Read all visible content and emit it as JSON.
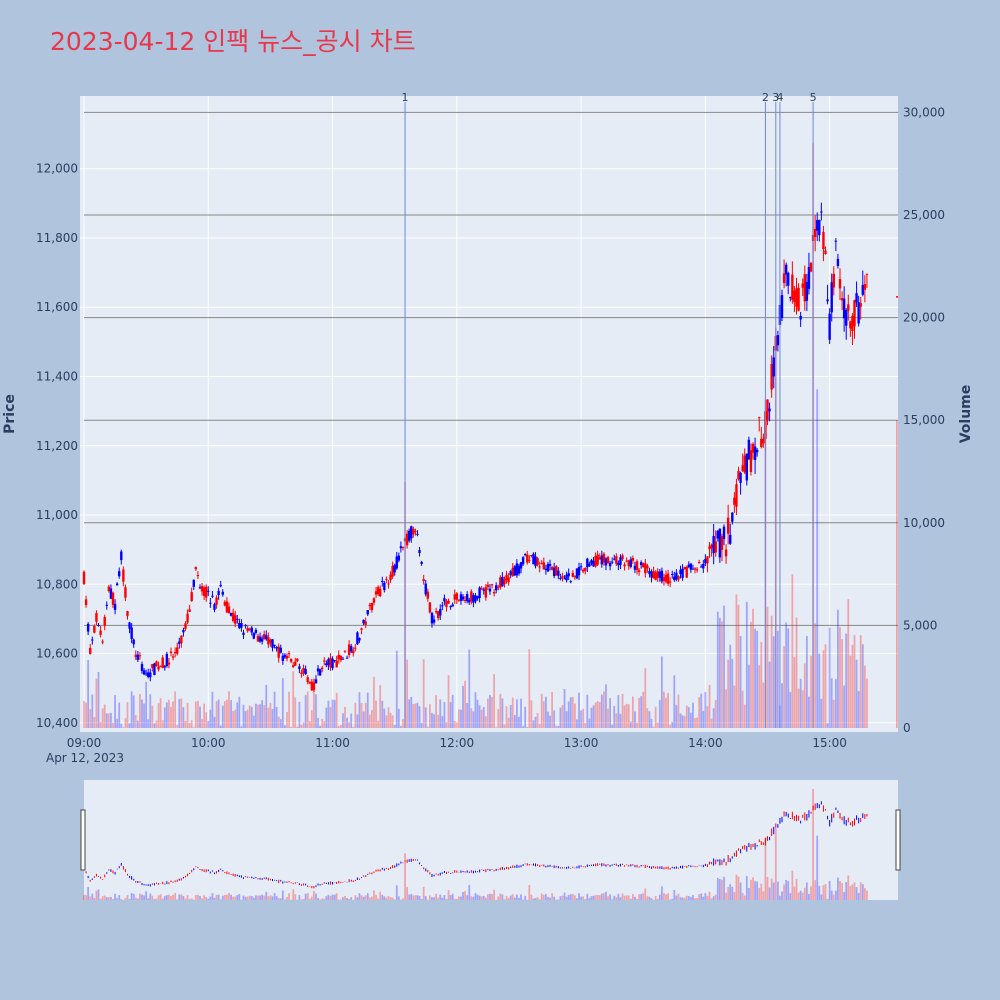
{
  "title": "2023-04-12 인팩 뉴스_공시 차트",
  "colors": {
    "background": "#b0c4de",
    "plot_bg": "#e5ecf6",
    "up": "#ff0000",
    "down": "#0000ff",
    "title": "#e8374a",
    "news_line": "#6f86e0",
    "h_line": "#888888"
  },
  "chart_data": {
    "type": "candlestick",
    "date_label": "Apr 12, 2023",
    "y_label": "Price",
    "y2_label": "Volume",
    "y_ticks": [
      "10,400",
      "10,600",
      "10,800",
      "11,000",
      "11,200",
      "11,400",
      "11,600",
      "11,800",
      "12,000"
    ],
    "y_tick_values": [
      10400,
      10600,
      10800,
      11000,
      11200,
      11400,
      11600,
      11800,
      12000
    ],
    "y_range": [
      10385,
      12210
    ],
    "y2_ticks": [
      "0",
      "5,000",
      "10,000",
      "15,000",
      "20,000",
      "25,000",
      "30,000"
    ],
    "y2_tick_values": [
      0,
      5000,
      10000,
      15000,
      20000,
      25000,
      30000
    ],
    "y2_range": [
      0,
      30800
    ],
    "x_ticks": [
      "09:00",
      "10:00",
      "11:00",
      "12:00",
      "13:00",
      "14:00",
      "15:00"
    ],
    "x_tick_minutes": [
      0,
      60,
      120,
      180,
      240,
      300,
      360
    ],
    "x_range_minutes": [
      0,
      393
    ],
    "news_markers": [
      {
        "label": "1",
        "minute": 155
      },
      {
        "label": "2",
        "minute": 329
      },
      {
        "label": "3",
        "minute": 334
      },
      {
        "label": "4",
        "minute": 336
      },
      {
        "label": "5",
        "minute": 352
      }
    ],
    "horizontal_lines_volume": [
      30000,
      25000,
      20000,
      15000,
      10000,
      5000
    ],
    "anchors": [
      [
        0,
        10820
      ],
      [
        3,
        10600
      ],
      [
        6,
        10700
      ],
      [
        9,
        10640
      ],
      [
        12,
        10790
      ],
      [
        15,
        10740
      ],
      [
        18,
        10880
      ],
      [
        21,
        10720
      ],
      [
        25,
        10600
      ],
      [
        30,
        10540
      ],
      [
        35,
        10560
      ],
      [
        40,
        10580
      ],
      [
        45,
        10600
      ],
      [
        50,
        10700
      ],
      [
        54,
        10840
      ],
      [
        57,
        10790
      ],
      [
        60,
        10770
      ],
      [
        63,
        10740
      ],
      [
        66,
        10790
      ],
      [
        70,
        10720
      ],
      [
        75,
        10680
      ],
      [
        80,
        10660
      ],
      [
        85,
        10650
      ],
      [
        90,
        10630
      ],
      [
        95,
        10600
      ],
      [
        100,
        10580
      ],
      [
        105,
        10560
      ],
      [
        110,
        10500
      ],
      [
        115,
        10570
      ],
      [
        120,
        10570
      ],
      [
        125,
        10590
      ],
      [
        130,
        10620
      ],
      [
        135,
        10680
      ],
      [
        140,
        10760
      ],
      [
        145,
        10800
      ],
      [
        150,
        10850
      ],
      [
        155,
        10920
      ],
      [
        160,
        10970
      ],
      [
        163,
        10850
      ],
      [
        168,
        10700
      ],
      [
        175,
        10750
      ],
      [
        185,
        10760
      ],
      [
        195,
        10780
      ],
      [
        205,
        10820
      ],
      [
        215,
        10880
      ],
      [
        225,
        10840
      ],
      [
        235,
        10820
      ],
      [
        245,
        10870
      ],
      [
        255,
        10870
      ],
      [
        265,
        10860
      ],
      [
        272,
        10840
      ],
      [
        282,
        10820
      ],
      [
        292,
        10840
      ],
      [
        300,
        10860
      ],
      [
        305,
        10900
      ],
      [
        312,
        10950
      ],
      [
        316,
        11080
      ],
      [
        320,
        11150
      ],
      [
        325,
        11220
      ],
      [
        329,
        11260
      ],
      [
        332,
        11400
      ],
      [
        335,
        11500
      ],
      [
        338,
        11670
      ],
      [
        342,
        11660
      ],
      [
        346,
        11620
      ],
      [
        350,
        11690
      ],
      [
        353,
        11830
      ],
      [
        356,
        11870
      ],
      [
        358,
        11720
      ],
      [
        360,
        11550
      ],
      [
        363,
        11750
      ],
      [
        366,
        11620
      ],
      [
        370,
        11560
      ],
      [
        374,
        11600
      ],
      [
        378,
        11650
      ]
    ]
  }
}
